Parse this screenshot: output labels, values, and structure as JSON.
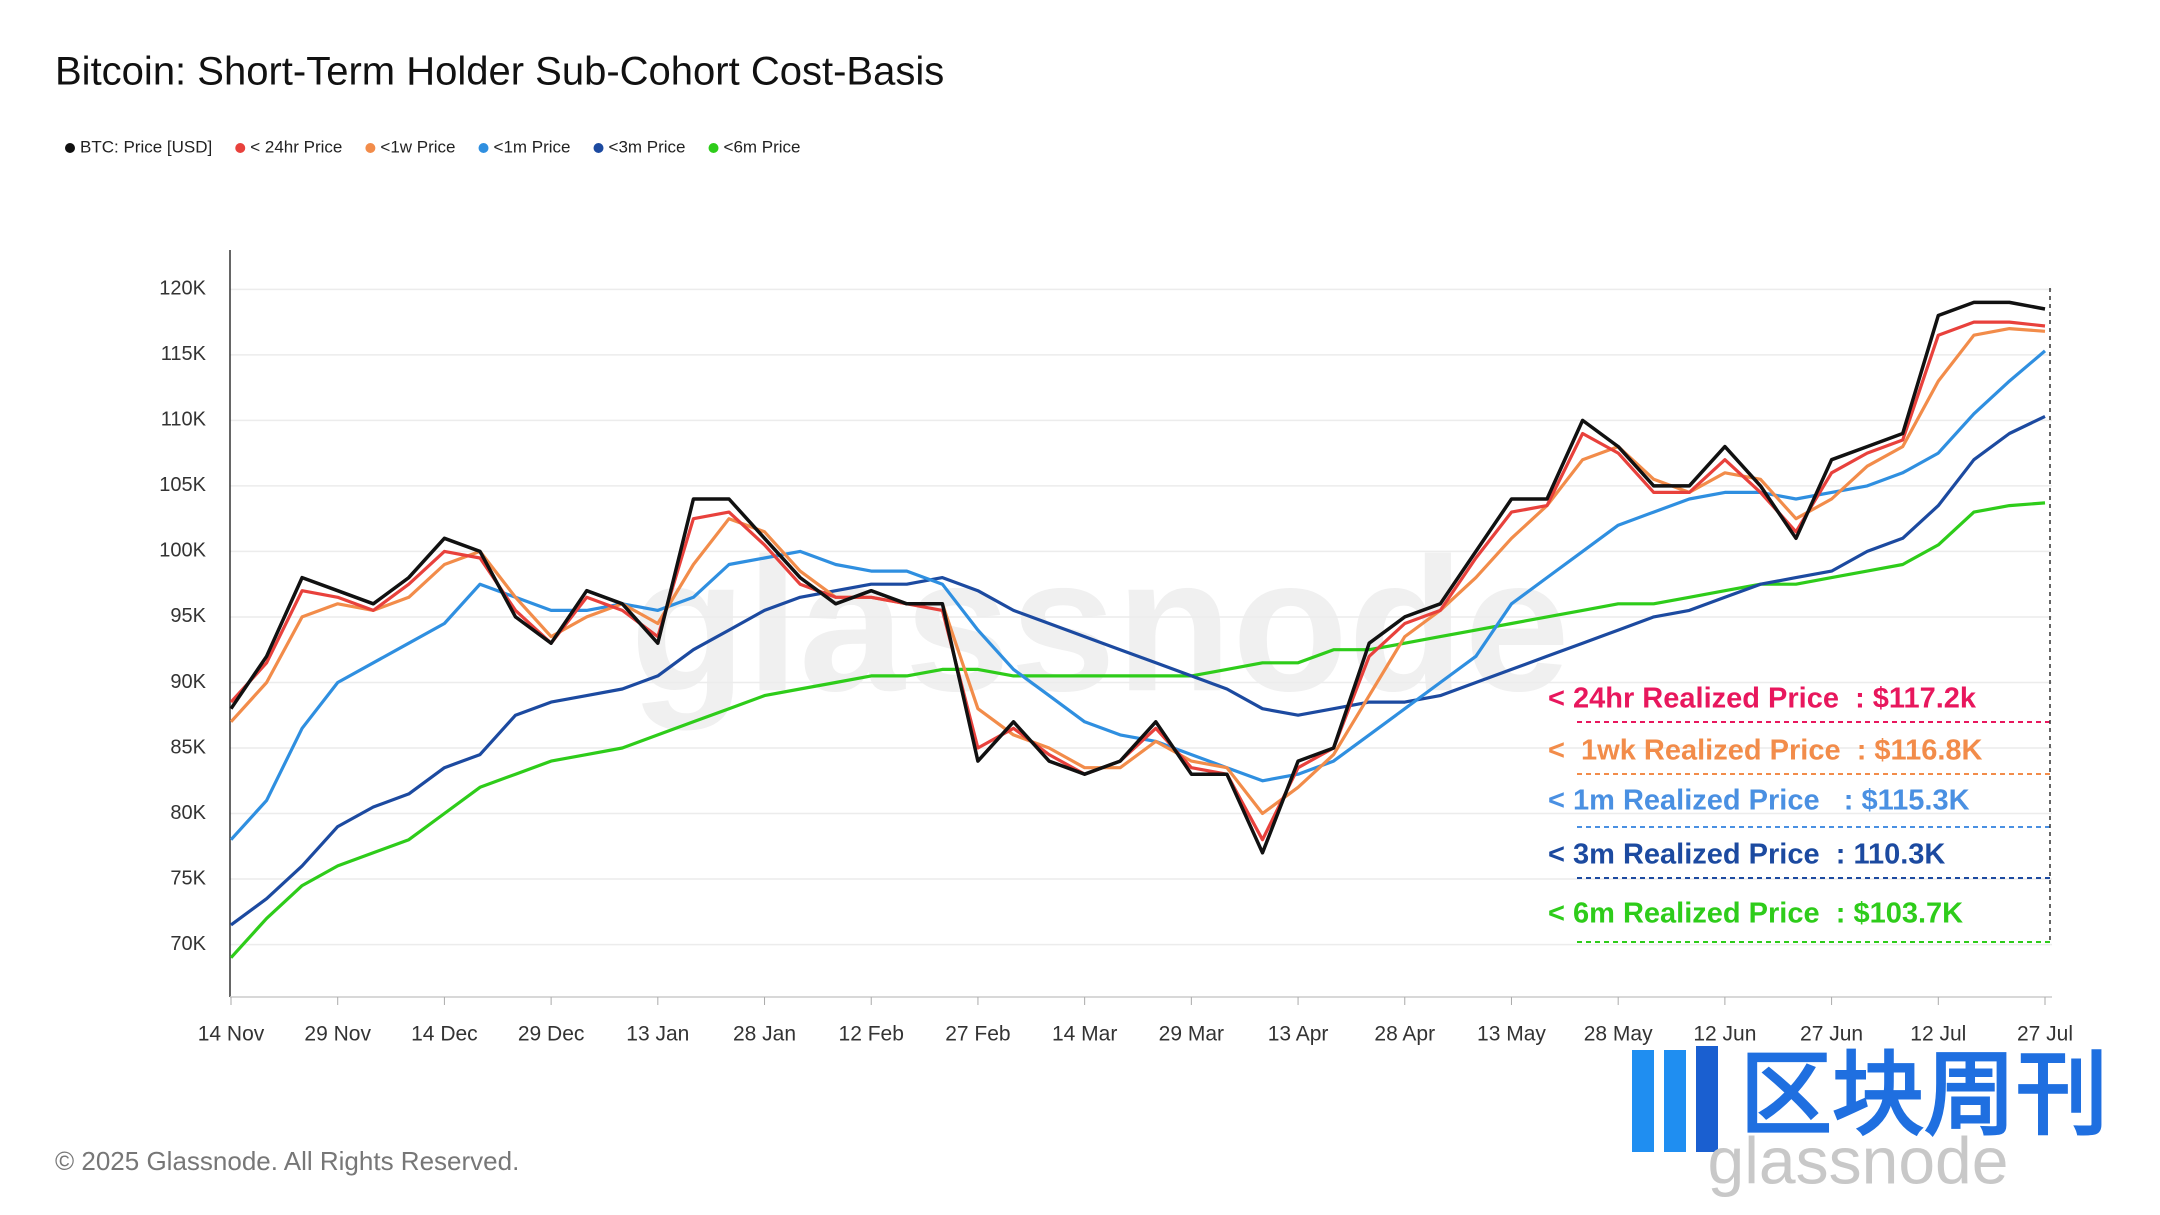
{
  "chart_data": {
    "type": "line",
    "title": "Bitcoin: Short-Term Holder Sub-Cohort Cost-Basis",
    "categories": [
      "14 Nov",
      null,
      null,
      "29 Nov",
      null,
      null,
      "14 Dec",
      null,
      null,
      "29 Dec",
      null,
      null,
      "13 Jan",
      null,
      null,
      "28 Jan",
      null,
      null,
      "12 Feb",
      null,
      null,
      "27 Feb",
      null,
      null,
      "14 Mar",
      null,
      null,
      "29 Mar",
      null,
      null,
      "13 Apr",
      null,
      null,
      "28 Apr",
      null,
      null,
      "13 May",
      null,
      null,
      "28 May",
      null,
      null,
      "12 Jun",
      null,
      null,
      "27 Jun",
      null,
      null,
      "12 Jul",
      null,
      null,
      "27 Jul"
    ],
    "series": [
      {
        "name": "BTC: Price [USD]",
        "color": "#111111",
        "values": [
          88000,
          92000,
          98000,
          97000,
          96000,
          98000,
          101000,
          100000,
          95000,
          93000,
          97000,
          96000,
          93000,
          104000,
          104000,
          101000,
          98000,
          96000,
          97000,
          96000,
          96000,
          84000,
          87000,
          84000,
          83000,
          84000,
          87000,
          83000,
          83000,
          77000,
          84000,
          85000,
          93000,
          95000,
          96000,
          100000,
          104000,
          104000,
          110000,
          108000,
          105000,
          105000,
          108000,
          105000,
          101000,
          107000,
          108000,
          109000,
          118000,
          119000,
          119000,
          118500
        ]
      },
      {
        "name": "< 24hr Price",
        "color": "#e8413c",
        "values": [
          88500,
          91500,
          97000,
          96500,
          95500,
          97500,
          100000,
          99500,
          95500,
          93000,
          96500,
          95500,
          93500,
          102500,
          103000,
          100500,
          97500,
          96500,
          96500,
          96000,
          95500,
          85000,
          86500,
          84500,
          83000,
          84000,
          86500,
          83500,
          83000,
          78000,
          83500,
          85000,
          92000,
          94500,
          95500,
          99500,
          103000,
          103500,
          109000,
          107500,
          104500,
          104500,
          107000,
          104500,
          101500,
          106000,
          107500,
          108500,
          116500,
          117500,
          117500,
          117200
        ]
      },
      {
        "name": "<1w Price",
        "color": "#f28c4a",
        "values": [
          87000,
          90000,
          95000,
          96000,
          95500,
          96500,
          99000,
          100000,
          96500,
          93500,
          95000,
          96000,
          94500,
          99000,
          102500,
          101500,
          98500,
          96500,
          96500,
          96000,
          96000,
          88000,
          86000,
          85000,
          83500,
          83500,
          85500,
          84000,
          83500,
          80000,
          82000,
          84500,
          89000,
          93500,
          95500,
          98000,
          101000,
          103500,
          107000,
          108000,
          105500,
          104500,
          106000,
          105500,
          102500,
          104000,
          106500,
          108000,
          113000,
          116500,
          117000,
          116800
        ]
      },
      {
        "name": "<1m Price",
        "color": "#2f8fe0",
        "values": [
          78000,
          81000,
          86500,
          90000,
          91500,
          93000,
          94500,
          97500,
          96500,
          95500,
          95500,
          96000,
          95500,
          96500,
          99000,
          99500,
          100000,
          99000,
          98500,
          98500,
          97500,
          94000,
          91000,
          89000,
          87000,
          86000,
          85500,
          84500,
          83500,
          82500,
          83000,
          84000,
          86000,
          88000,
          90000,
          92000,
          96000,
          98000,
          100000,
          102000,
          103000,
          104000,
          104500,
          104500,
          104000,
          104500,
          105000,
          106000,
          107500,
          110500,
          113000,
          115300
        ]
      },
      {
        "name": "<3m Price",
        "color": "#1c4aa0",
        "values": [
          71500,
          73500,
          76000,
          79000,
          80500,
          81500,
          83500,
          84500,
          87500,
          88500,
          89000,
          89500,
          90500,
          92500,
          94000,
          95500,
          96500,
          97000,
          97500,
          97500,
          98000,
          97000,
          95500,
          94500,
          93500,
          92500,
          91500,
          90500,
          89500,
          88000,
          87500,
          88000,
          88500,
          88500,
          89000,
          90000,
          91000,
          92000,
          93000,
          94000,
          95000,
          95500,
          96500,
          97500,
          98000,
          98500,
          100000,
          101000,
          103500,
          107000,
          109000,
          110300
        ]
      },
      {
        "name": "<6m Price",
        "color": "#2ecc1a",
        "values": [
          69000,
          72000,
          74500,
          76000,
          77000,
          78000,
          80000,
          82000,
          83000,
          84000,
          84500,
          85000,
          86000,
          87000,
          88000,
          89000,
          89500,
          90000,
          90500,
          90500,
          91000,
          91000,
          90500,
          90500,
          90500,
          90500,
          90500,
          90500,
          91000,
          91500,
          91500,
          92500,
          92500,
          93000,
          93500,
          94000,
          94500,
          95000,
          95500,
          96000,
          96000,
          96500,
          97000,
          97500,
          97500,
          98000,
          98500,
          99000,
          100500,
          103000,
          103500,
          103700
        ]
      }
    ],
    "ylim": [
      66000,
      123000
    ],
    "yticks": [
      {
        "value": 70000,
        "label": "70K"
      },
      {
        "value": 75000,
        "label": "75K"
      },
      {
        "value": 80000,
        "label": "80K"
      },
      {
        "value": 85000,
        "label": "85K"
      },
      {
        "value": 90000,
        "label": "90K"
      },
      {
        "value": 95000,
        "label": "95K"
      },
      {
        "value": 100000,
        "label": "100K"
      },
      {
        "value": 105000,
        "label": "105K"
      },
      {
        "value": 110000,
        "label": "110K"
      },
      {
        "value": 115000,
        "label": "115K"
      },
      {
        "value": 120000,
        "label": "120K"
      }
    ],
    "grid": true,
    "legend": "top-left",
    "annotations": [
      {
        "text": "< 24hr Realized Price  : $117.2k",
        "color": "#e8175d"
      },
      {
        "text": "<  1wk Realized Price  : $116.8K",
        "color": "#f28c4a"
      },
      {
        "text": "< 1m Realized Price   : $115.3K",
        "color": "#4a90e2"
      },
      {
        "text": "< 3m Realized Price  : 110.3K",
        "color": "#1c4aa0"
      },
      {
        "text": "< 6m Realized Price  : $103.7K",
        "color": "#2ecc1a"
      }
    ],
    "watermark": "glassnode",
    "footer": "© 2025 Glassnode. All Rights Reserved."
  },
  "logo": {
    "chinese": "区块周刊",
    "brand": "glassnode"
  }
}
